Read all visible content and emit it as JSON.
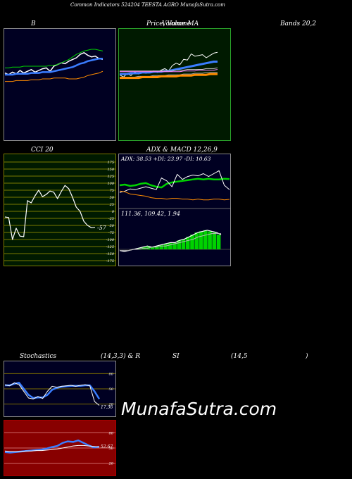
{
  "header": {
    "title": "Common Indicators 524204 TEESTA AGRO MunafaSutra.com"
  },
  "labels": {
    "bands_left": "B",
    "bands_right": "Bands 20,2",
    "price_title_1": "Price, Volume",
    "price_title_2": "Volume MA",
    "cci_title": "CCI 20",
    "macd_title_a": "ADX  & MACD 12,26,9",
    "macd_adx": "ADX: 38.53  +DI: 23.97 -DI: 10.63",
    "macd_values": "111.36,    109.42,    1.94",
    "stoch_a": "Stochastics",
    "stoch_b": "(14,3,3) & R",
    "stoch_c": "SI",
    "stoch_d": "(14,5",
    "stoch_e": ")",
    "stoch_value": "17.36",
    "rsi_value": "52.67",
    "cci_value": "-57",
    "watermark": "MunafaSutra.com"
  },
  "colors": {
    "navy": "#000022",
    "green_panel": "#001a00",
    "red_panel": "#880000",
    "olive_grid": "#7a7a00",
    "white": "#ffffff",
    "blue": "#3a7dff",
    "green": "#00d200",
    "orange": "#ff8c00",
    "pink": "#ff80ff"
  },
  "chart_data": [
    {
      "type": "line",
      "title": "B",
      "subtitle": "Bands 20,2",
      "ylim": [
        0,
        100
      ],
      "series": [
        {
          "name": "price",
          "values": [
            62,
            60,
            63,
            61,
            65,
            62,
            64,
            66,
            63,
            65,
            67,
            68,
            64,
            70,
            72,
            74,
            73,
            76,
            78,
            80,
            84,
            86,
            83,
            81,
            82,
            79,
            78
          ]
        },
        {
          "name": "upper",
          "values": [
            68,
            68,
            69,
            69,
            69,
            70,
            70,
            70,
            70,
            70,
            70,
            70,
            71,
            71,
            72,
            74,
            76,
            78,
            81,
            84,
            86,
            88,
            89,
            90,
            90,
            89,
            88
          ]
        },
        {
          "name": "middle",
          "values": [
            60,
            60,
            60,
            61,
            61,
            61,
            61,
            62,
            62,
            62,
            63,
            63,
            63,
            64,
            65,
            66,
            67,
            68,
            69,
            71,
            73,
            74,
            76,
            77,
            78,
            79,
            79
          ]
        },
        {
          "name": "lower",
          "values": [
            52,
            52,
            52,
            53,
            53,
            53,
            53,
            54,
            54,
            54,
            55,
            55,
            55,
            56,
            56,
            56,
            56,
            55,
            55,
            55,
            56,
            57,
            59,
            60,
            61,
            62,
            64
          ]
        }
      ]
    },
    {
      "type": "line",
      "title": "Price, Volume",
      "subtitle": "Volume MA",
      "ylim": [
        0,
        100
      ],
      "series": [
        {
          "name": "price",
          "values": [
            58,
            55,
            60,
            57,
            62,
            59,
            61,
            60,
            62,
            63,
            61,
            64,
            66,
            63,
            70,
            73,
            71,
            78,
            77,
            85,
            82,
            83,
            84,
            80,
            83,
            86,
            87
          ]
        },
        {
          "name": "ma1",
          "values": [
            59,
            59,
            59,
            60,
            60,
            60,
            61,
            61,
            61,
            62,
            62,
            62,
            63,
            63,
            64,
            65,
            66,
            67,
            68,
            69,
            70,
            71,
            72,
            73,
            74,
            75,
            75
          ]
        },
        {
          "name": "ma2",
          "values": [
            63,
            63,
            63,
            63,
            63,
            63,
            63,
            63,
            63,
            63,
            63,
            63,
            63,
            63,
            63,
            64,
            64,
            64,
            65,
            65,
            65,
            65,
            65,
            66,
            66,
            66,
            67
          ]
        },
        {
          "name": "ma3",
          "values": [
            62,
            62,
            62,
            62,
            62,
            62,
            62,
            62,
            62,
            62,
            62,
            62,
            62,
            62,
            62,
            62,
            62,
            63,
            63,
            63,
            63,
            64,
            64,
            64,
            64,
            64,
            65
          ]
        },
        {
          "name": "ma4",
          "values": [
            55,
            55,
            55,
            55,
            55,
            56,
            56,
            56,
            56,
            57,
            57,
            57,
            57,
            58,
            58,
            58,
            58,
            59,
            59,
            59,
            60,
            60,
            60,
            61,
            61,
            61,
            61
          ]
        },
        {
          "name": "ma5",
          "values": [
            54,
            54,
            54,
            54,
            54,
            54,
            55,
            55,
            55,
            55,
            55,
            56,
            56,
            56,
            56,
            56,
            57,
            57,
            57,
            57,
            58,
            58,
            58,
            58,
            59,
            59,
            59
          ]
        }
      ]
    },
    {
      "type": "line",
      "title": "CCI 20",
      "ylim": [
        -175,
        175
      ],
      "yticks": [
        175,
        150,
        125,
        100,
        75,
        50,
        25,
        0,
        -25,
        -50,
        -75,
        -100,
        -125,
        -150,
        -175
      ],
      "series": [
        {
          "name": "cci",
          "values": [
            -20,
            -22,
            -100,
            -60,
            -88,
            -90,
            38,
            30,
            55,
            75,
            52,
            60,
            72,
            68,
            45,
            70,
            92,
            80,
            50,
            15,
            0,
            -35,
            -50,
            -58,
            -57
          ]
        }
      ]
    },
    {
      "type": "line",
      "title": "ADX  & MACD 12,26,9",
      "ylim": [
        0,
        60
      ],
      "series": [
        {
          "name": "adx",
          "values": [
            30,
            31,
            29,
            30,
            32,
            33,
            30,
            28,
            27,
            32,
            34,
            35,
            36,
            37,
            38,
            39,
            38,
            39,
            38,
            38,
            39,
            38.5
          ]
        },
        {
          "name": "+di",
          "values": [
            20,
            22,
            25,
            24,
            26,
            28,
            26,
            24,
            40,
            36,
            28,
            45,
            38,
            42,
            44,
            43,
            46,
            42,
            46,
            50,
            30,
            23.97
          ]
        },
        {
          "name": "-di",
          "values": [
            22,
            21,
            18,
            17,
            16,
            15,
            13,
            12,
            12,
            11,
            12,
            12,
            11,
            11,
            10,
            11,
            10,
            10,
            11,
            11,
            10,
            10.63
          ]
        }
      ]
    },
    {
      "type": "bar",
      "title": "111.36,    109.42,    1.94",
      "ylim": [
        -5,
        25
      ],
      "series": [
        {
          "name": "macd",
          "values": [
            -1,
            -2,
            -1,
            0,
            1,
            2,
            3,
            2,
            3,
            4,
            5,
            6,
            6,
            8,
            9,
            11,
            13,
            15,
            16,
            17,
            16,
            15,
            13
          ]
        },
        {
          "name": "signal",
          "values": [
            -1,
            -1,
            -1,
            0,
            0,
            1,
            1,
            2,
            2,
            3,
            3,
            4,
            5,
            6,
            7,
            8,
            9,
            11,
            12,
            13,
            14,
            14,
            14
          ]
        },
        {
          "name": "histogram",
          "values": [
            0,
            -1,
            0,
            0,
            1,
            1,
            2,
            0,
            1,
            1,
            2,
            2,
            1,
            2,
            2,
            3,
            4,
            4,
            4,
            4,
            2,
            1,
            -1
          ]
        }
      ]
    },
    {
      "type": "line",
      "title": "Stochastics (14,3,3)",
      "ylim": [
        0,
        100
      ],
      "yticks": [
        80,
        50,
        20
      ],
      "series": [
        {
          "name": "k",
          "values": [
            58,
            56,
            62,
            58,
            45,
            32,
            30,
            35,
            31,
            45,
            55,
            53,
            55,
            56,
            57,
            55,
            57,
            58,
            56,
            25,
            17.36
          ]
        },
        {
          "name": "d",
          "values": [
            57,
            57,
            60,
            62,
            50,
            38,
            32,
            33,
            33,
            38,
            48,
            52,
            54,
            55,
            56,
            56,
            56,
            57,
            57,
            45,
            30
          ]
        }
      ]
    },
    {
      "type": "line",
      "title": "RSI (14)",
      "ylim": [
        0,
        100
      ],
      "yticks": [
        80,
        50,
        20
      ],
      "series": [
        {
          "name": "rsi",
          "values": [
            42,
            41,
            42,
            43,
            44,
            45,
            46,
            47,
            49,
            52,
            54,
            60,
            63,
            62,
            65,
            60,
            55,
            51,
            52.67
          ]
        },
        {
          "name": "rsi_ma",
          "values": [
            44,
            43,
            43,
            43,
            44,
            44,
            45,
            45,
            46,
            47,
            48,
            50,
            52,
            54,
            55,
            55,
            54,
            53,
            52
          ]
        }
      ]
    }
  ]
}
